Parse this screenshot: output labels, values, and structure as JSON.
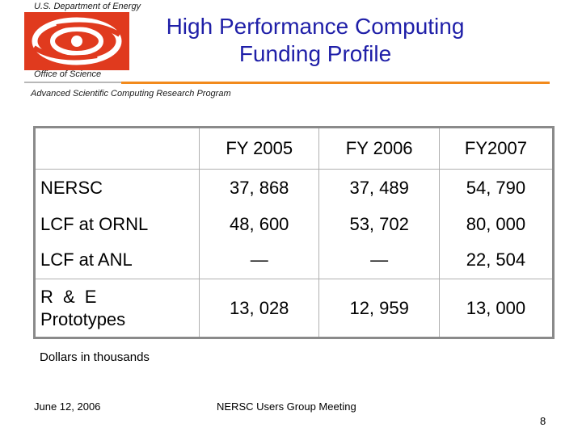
{
  "header": {
    "department": "U.S. Department of Energy",
    "office": "Office of Science",
    "program": "Advanced Scientific Computing Research Program",
    "title_line1": "High Performance Computing",
    "title_line2": "Funding Profile"
  },
  "colors": {
    "title": "#1f1fa8",
    "accent_orange": "#f28a1c",
    "logo_red": "#e03a1e"
  },
  "table": {
    "columns": [
      "",
      "FY 2005",
      "FY 2006",
      "FY2007"
    ],
    "rows": [
      {
        "label": "NERSC",
        "values": [
          "37, 868",
          "37, 489",
          "54, 790"
        ]
      },
      {
        "label": "LCF at ORNL",
        "values": [
          "48, 600",
          "53, 702",
          "80, 000"
        ]
      },
      {
        "label": "LCF at ANL",
        "values": [
          "—",
          "—",
          "22, 504"
        ]
      },
      {
        "label_line1": "R & E",
        "label_line2": "Prototypes",
        "values": [
          "13, 028",
          "12, 959",
          "13, 000"
        ]
      }
    ]
  },
  "footer": {
    "units": "Dollars in thousands",
    "date": "June 12, 2006",
    "meeting": "NERSC Users Group Meeting",
    "page": "8"
  }
}
